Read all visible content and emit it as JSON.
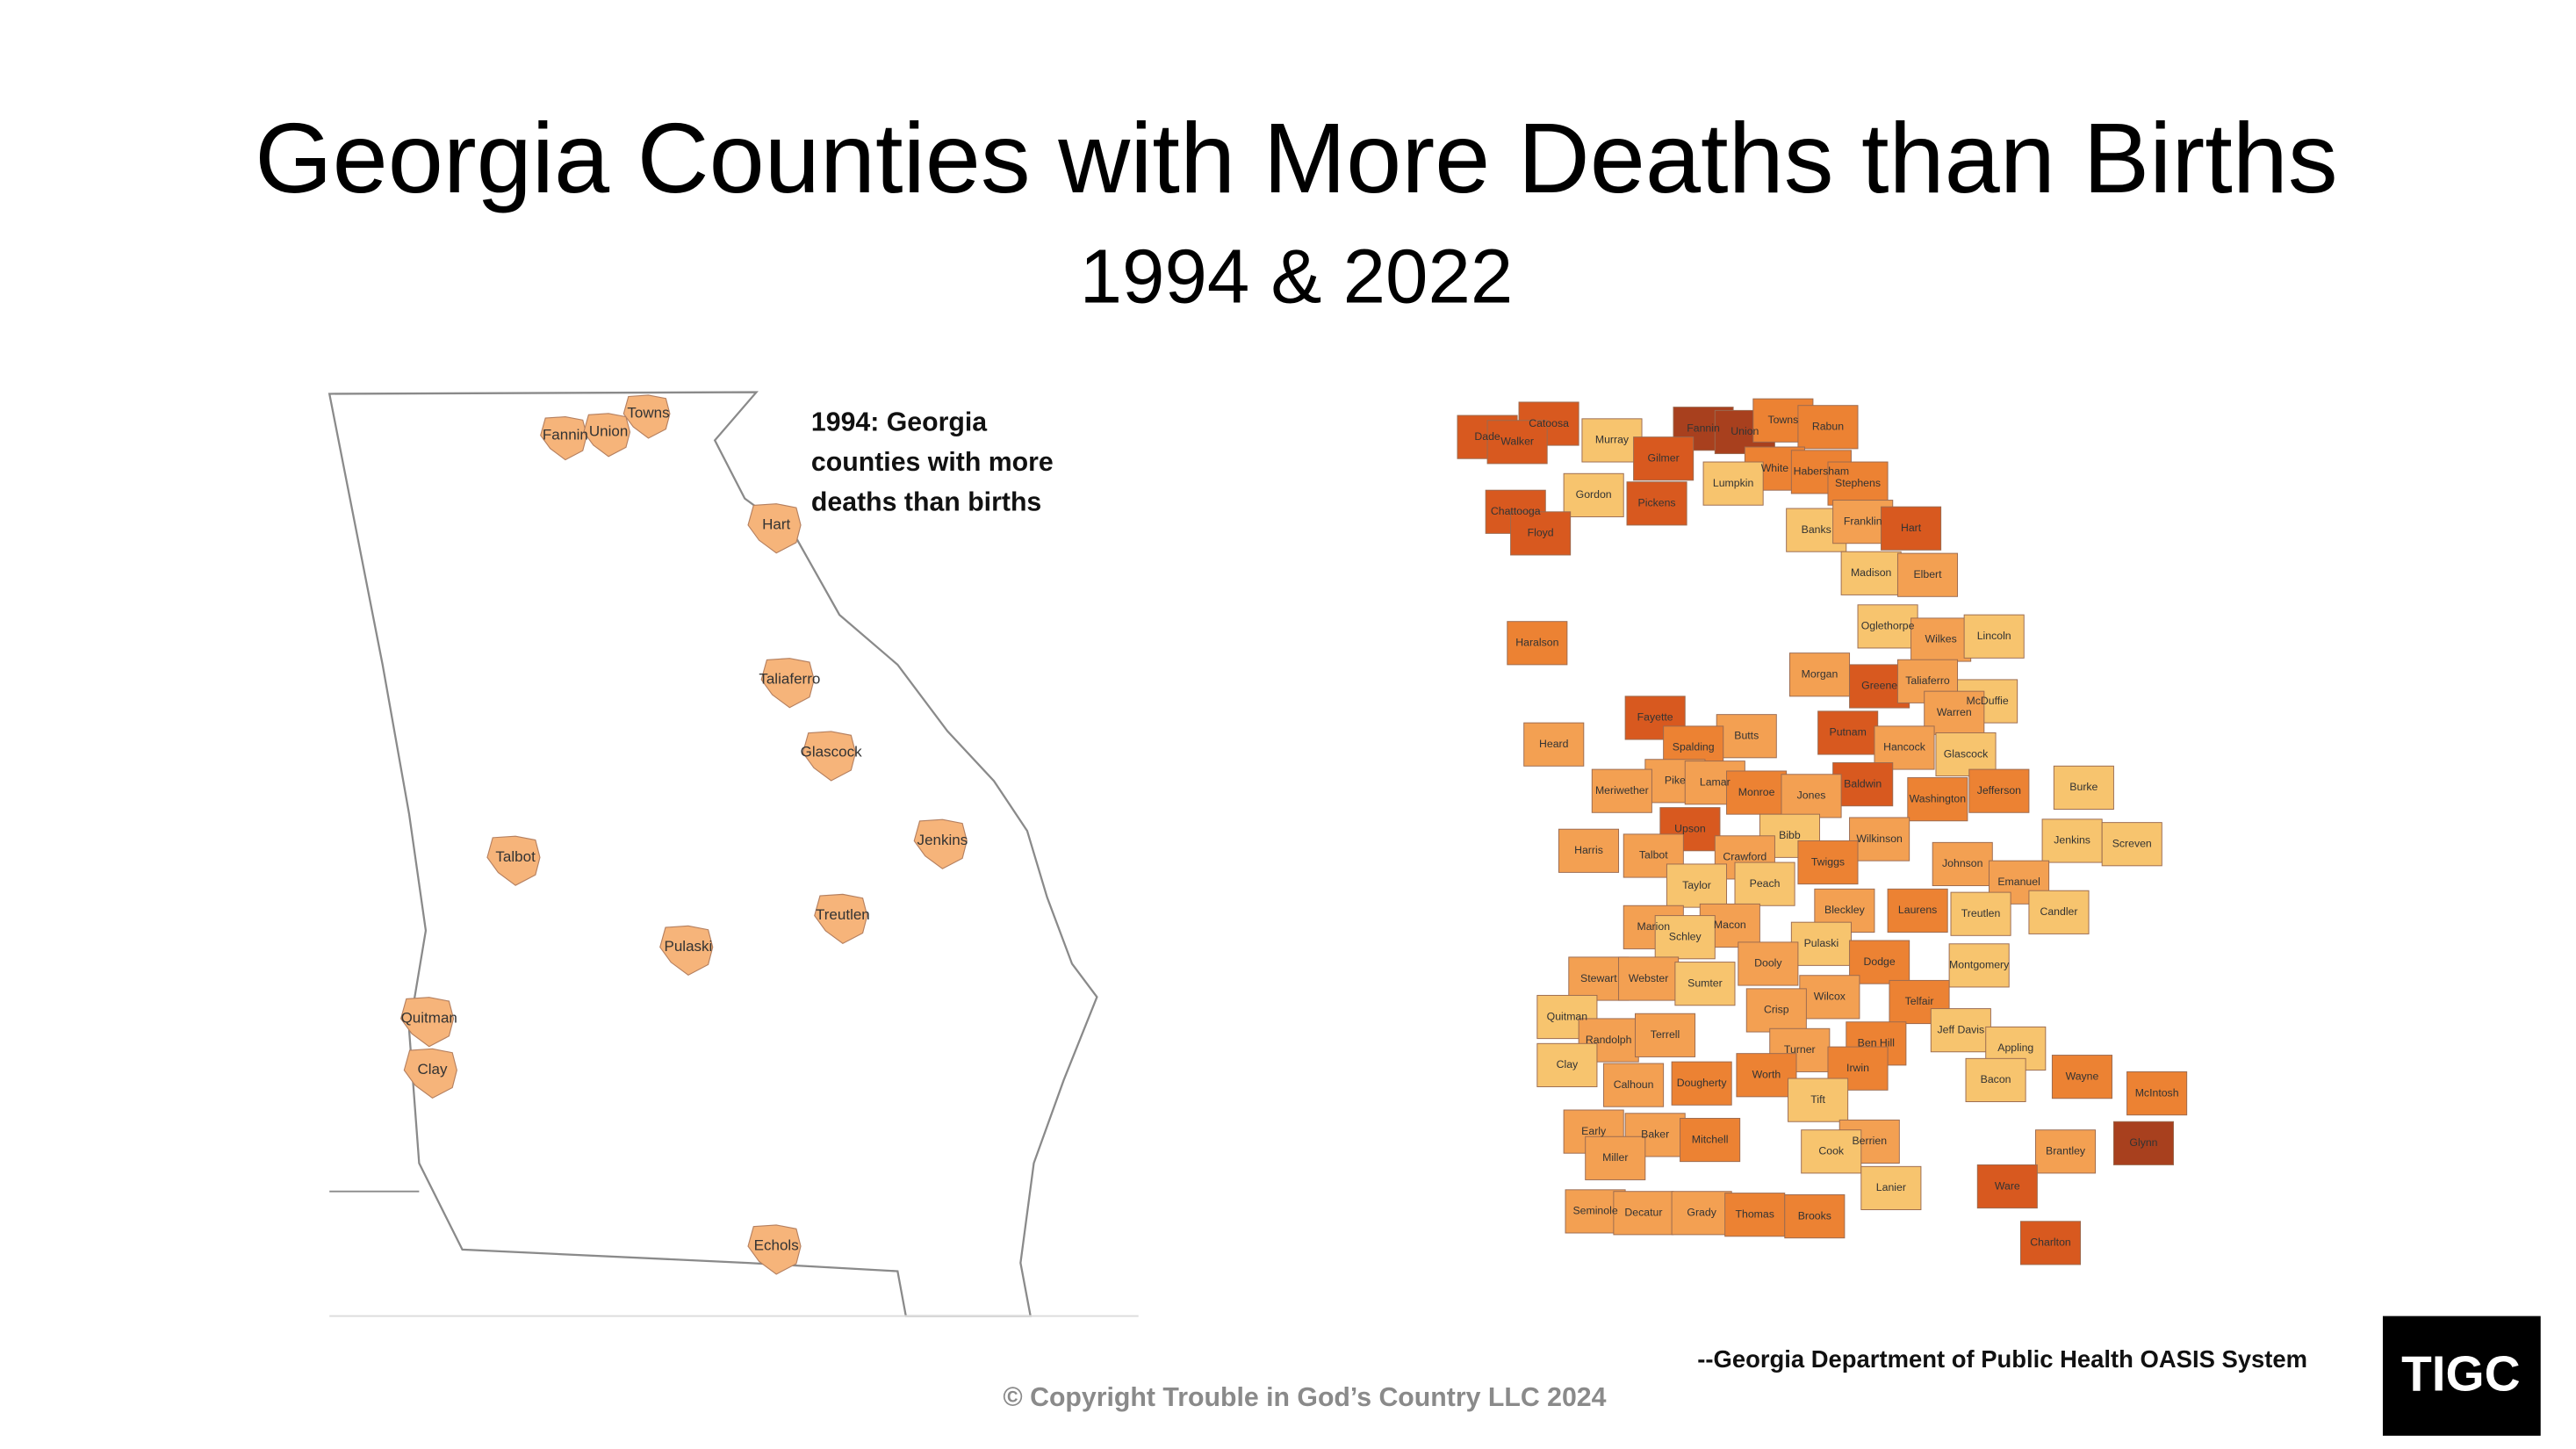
{
  "title": "Georgia Counties with More Deaths than Births",
  "subtitle": "1994 & 2022",
  "map_1994": {
    "caption": [
      "1994: Georgia",
      "counties with more",
      "deaths than births"
    ],
    "counties": [
      "Fannin",
      "Union",
      "Towns",
      "Hart",
      "Taliaferro",
      "Glascock",
      "Jenkins",
      "Talbot",
      "Treutlen",
      "Pulaski",
      "Quitman",
      "Clay",
      "Echols"
    ]
  },
  "map_2022": {
    "counties": [
      "Catoosa",
      "Dade",
      "Walker",
      "Murray",
      "Fannin",
      "Union",
      "Towns",
      "Rabun",
      "Gilmer",
      "White",
      "Habersham",
      "Stephens",
      "Gordon",
      "Lumpkin",
      "Pickens",
      "Chattooga",
      "Floyd",
      "Banks",
      "Franklin",
      "Hart",
      "Madison",
      "Elbert",
      "Oglethorpe",
      "Wilkes",
      "Lincoln",
      "Haralson",
      "Morgan",
      "Greene",
      "Taliaferro",
      "McDuffie",
      "Warren",
      "Fayette",
      "Butts",
      "Putnam",
      "Heard",
      "Spalding",
      "Hancock",
      "Glascock",
      "Pike",
      "Lamar",
      "Baldwin",
      "Monroe",
      "Jones",
      "Washington",
      "Jefferson",
      "Burke",
      "Meriwether",
      "Upson",
      "Bibb",
      "Wilkinson",
      "Jenkins",
      "Screven",
      "Harris",
      "Talbot",
      "Crawford",
      "Twiggs",
      "Johnson",
      "Taylor",
      "Peach",
      "Emanuel",
      "Bleckley",
      "Laurens",
      "Treutlen",
      "Candler",
      "Macon",
      "Marion",
      "Schley",
      "Pulaski",
      "Dooly",
      "Dodge",
      "Montgomery",
      "Stewart",
      "Webster",
      "Sumter",
      "Wilcox",
      "Telfair",
      "Crisp",
      "Quitman",
      "Jeff Davis",
      "Randolph",
      "Terrell",
      "Ben Hill",
      "Appling",
      "Clay",
      "Turner",
      "Irwin",
      "Calhoun",
      "Dougherty",
      "Worth",
      "Bacon",
      "Wayne",
      "McIntosh",
      "Tift",
      "Early",
      "Baker",
      "Mitchell",
      "Berrien",
      "Brantley",
      "Glynn",
      "Cook",
      "Miller",
      "Ware",
      "Lanier",
      "Seminole",
      "Decatur",
      "Grady",
      "Thomas",
      "Brooks",
      "Charlton"
    ]
  },
  "source": "--Georgia Department of Public Health OASIS System",
  "copyright": "© Copyright Trouble in God’s Country LLC 2024",
  "logo": "TIGC"
}
